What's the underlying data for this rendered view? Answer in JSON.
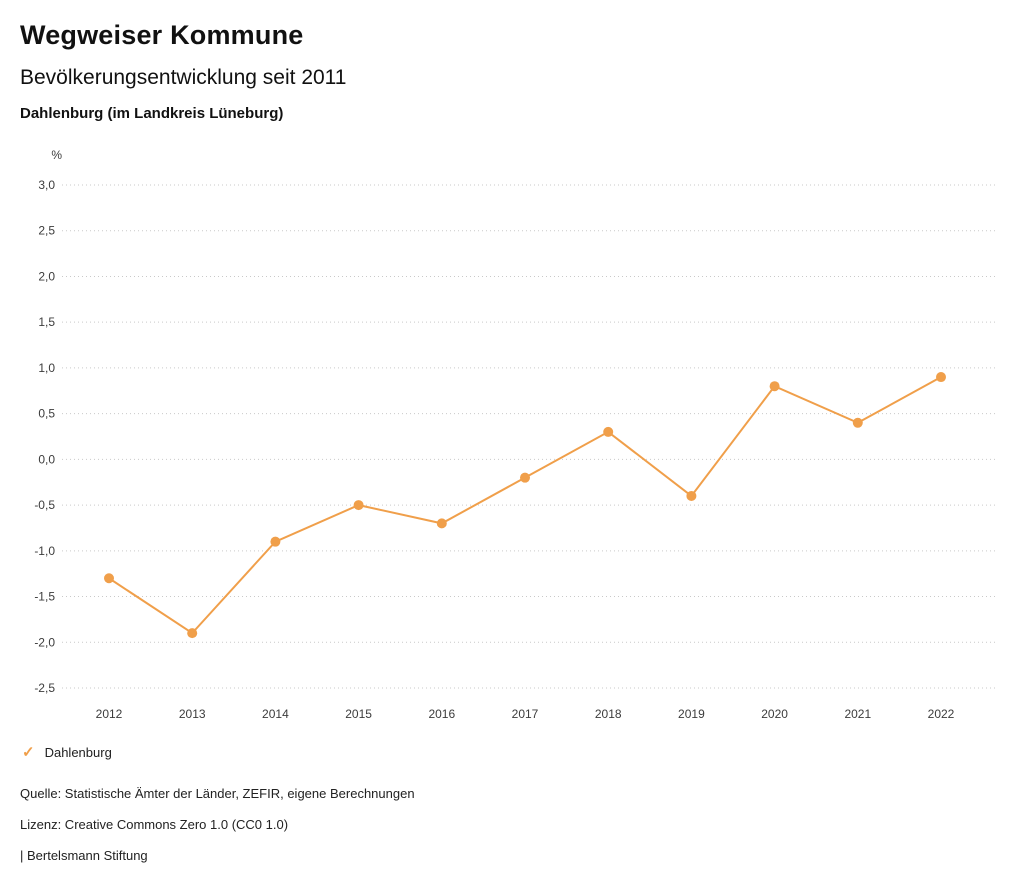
{
  "header": {
    "title": "Wegweiser Kommune",
    "subtitle": "Bevölkerungsentwicklung seit 2011",
    "region": "Dahlenburg (im Landkreis Lüneburg)"
  },
  "chart_data": {
    "type": "line",
    "title": "Bevölkerungsentwicklung seit 2011",
    "unit": "%",
    "categories": [
      "2012",
      "2013",
      "2014",
      "2015",
      "2016",
      "2017",
      "2018",
      "2019",
      "2020",
      "2021",
      "2022"
    ],
    "series": [
      {
        "name": "Dahlenburg",
        "color": "#f09f4a",
        "values": [
          -1.3,
          -1.9,
          -0.9,
          -0.5,
          -0.7,
          -0.2,
          0.3,
          -0.4,
          0.8,
          0.4,
          0.9
        ]
      }
    ],
    "ylim": [
      -2.5,
      3.0
    ],
    "ytick_step": 0.5,
    "yticks": [
      "3,0",
      "2,5",
      "2,0",
      "1,5",
      "1,0",
      "0,5",
      "0,0",
      "-0,5",
      "-1,0",
      "-1,5",
      "-2,0",
      "-2,5"
    ],
    "grid": "horizontal-dotted",
    "gridline_color": "#c9c9c9",
    "legend_position": "bottom-left"
  },
  "legend": {
    "marker": "check-icon",
    "label": "Dahlenburg"
  },
  "footer": {
    "source": "Quelle: Statistische Ämter der Länder, ZEFIR, eigene Berechnungen",
    "license": "Lizenz: Creative Commons Zero 1.0 (CC0 1.0)",
    "attribution": "| Bertelsmann Stiftung"
  }
}
